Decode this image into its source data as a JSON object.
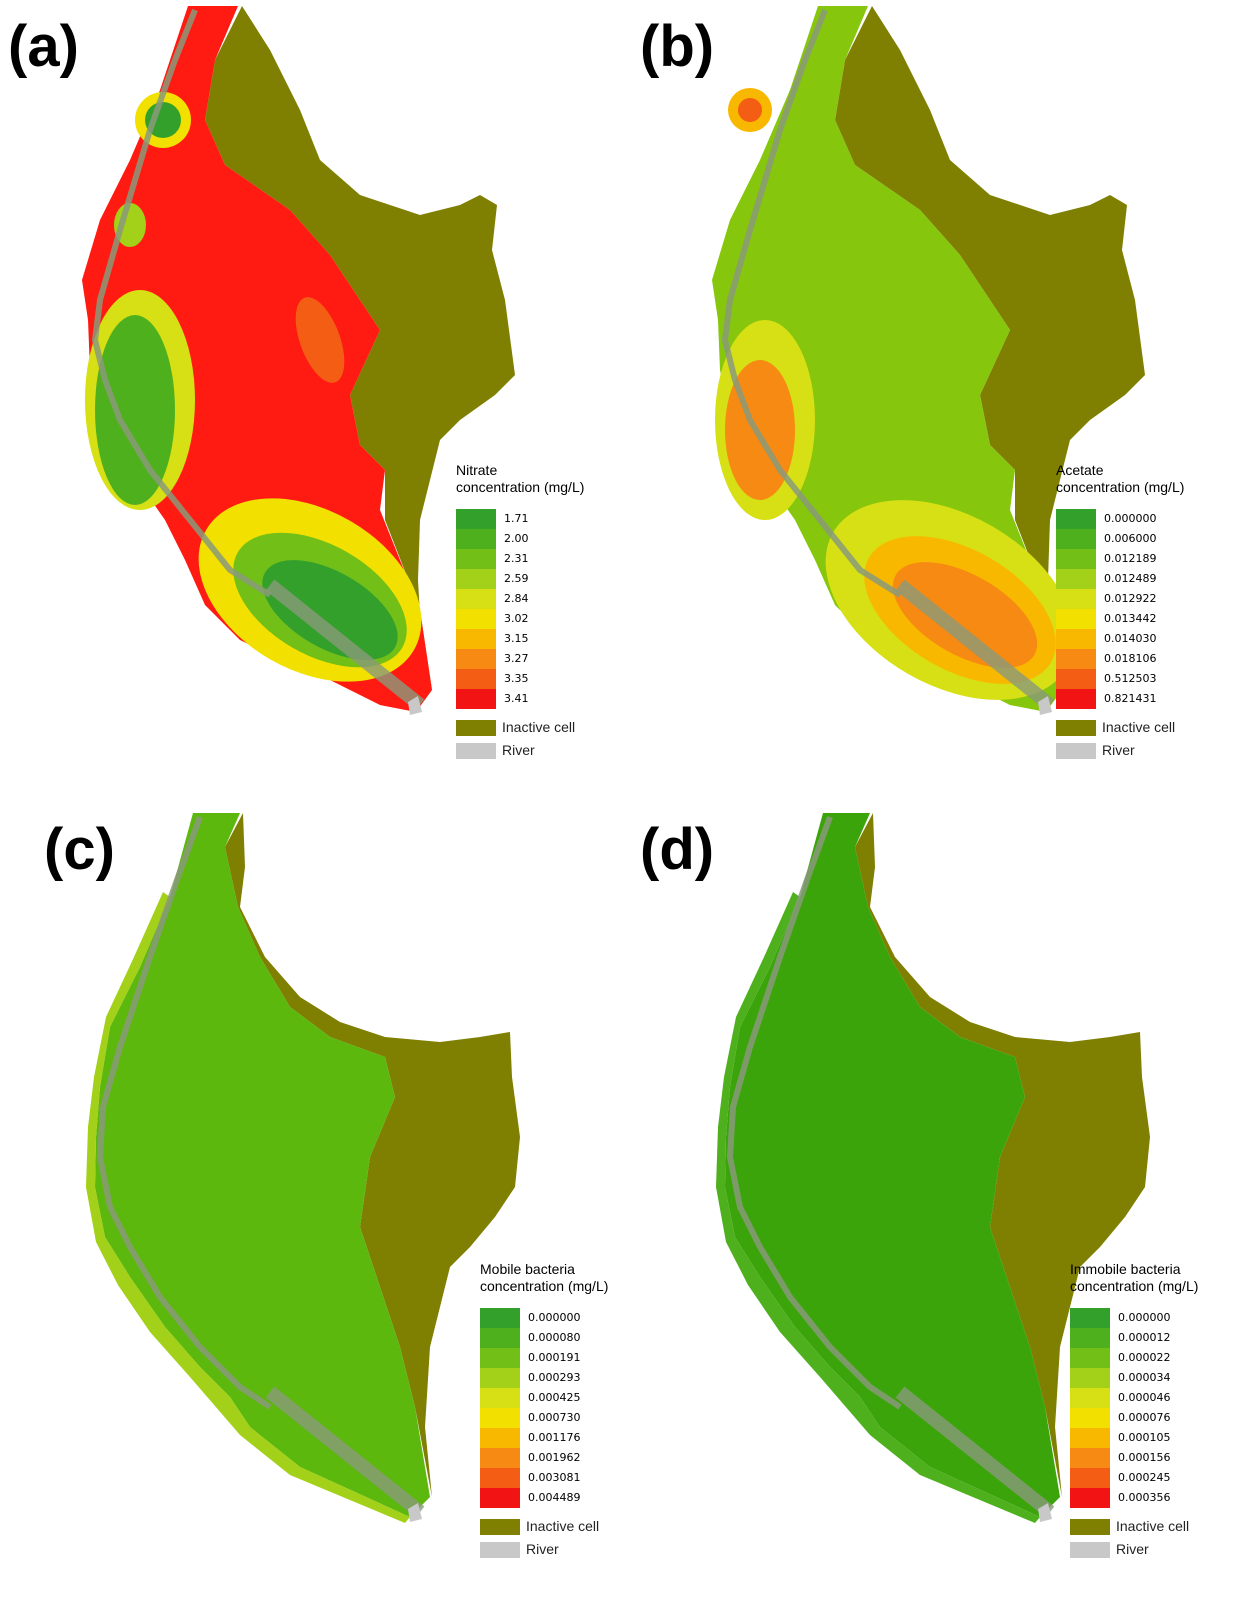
{
  "colors": {
    "inactive": "#7f7f02",
    "river": "#c8c8c8",
    "channel": "#8a9a7a",
    "ramp": [
      "#33a02c",
      "#4fb01e",
      "#72bf18",
      "#a3d018",
      "#d6e014",
      "#f2e000",
      "#f9b800",
      "#f78a12",
      "#f45d14",
      "#f21414"
    ]
  },
  "panels": [
    {
      "label": "(a)",
      "legend_title": [
        "Nitrate",
        "concentration (mg/L)"
      ],
      "ticks": [
        "1.71",
        "2.00",
        "2.31",
        "2.59",
        "2.84",
        "3.02",
        "3.15",
        "3.27",
        "3.35",
        "3.41"
      ],
      "fill": "#ff1a12",
      "inactive_label": "Inactive cell",
      "river_label": "River"
    },
    {
      "label": "(b)",
      "legend_title": [
        "Acetate",
        "concentration (mg/L)"
      ],
      "ticks": [
        "0.000000",
        "0.006000",
        "0.012189",
        "0.012489",
        "0.012922",
        "0.013442",
        "0.014030",
        "0.018106",
        "0.512503",
        "0.821431"
      ],
      "fill": "#86c60c",
      "inactive_label": "Inactive cell",
      "river_label": "River"
    },
    {
      "label": "(c)",
      "legend_title": [
        "Mobile bacteria",
        "concentration (mg/L)"
      ],
      "ticks": [
        "0.000000",
        "0.000080",
        "0.000191",
        "0.000293",
        "0.000425",
        "0.000730",
        "0.001176",
        "0.001962",
        "0.003081",
        "0.004489"
      ],
      "fill": "#5cb80c",
      "inactive_label": "Inactive cell",
      "river_label": "River"
    },
    {
      "label": "(d)",
      "legend_title": [
        "Immobile bacteria",
        "concentration (mg/L)"
      ],
      "ticks": [
        "0.000000",
        "0.000012",
        "0.000022",
        "0.000034",
        "0.000046",
        "0.000076",
        "0.000105",
        "0.000156",
        "0.000245",
        "0.000356"
      ],
      "fill": "#3aa40a",
      "inactive_label": "Inactive cell",
      "river_label": "River"
    }
  ]
}
